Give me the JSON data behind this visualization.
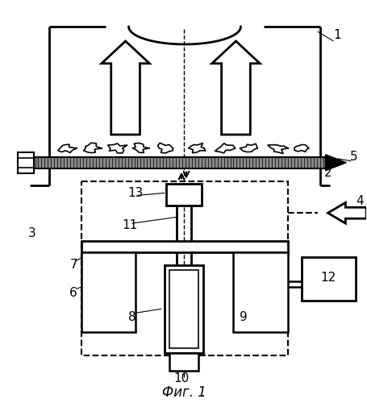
{
  "title": "Фиг. 1",
  "bg_color": "#ffffff",
  "line_color": "#000000",
  "figsize": [
    4.56,
    5.0
  ],
  "dpi": 100
}
